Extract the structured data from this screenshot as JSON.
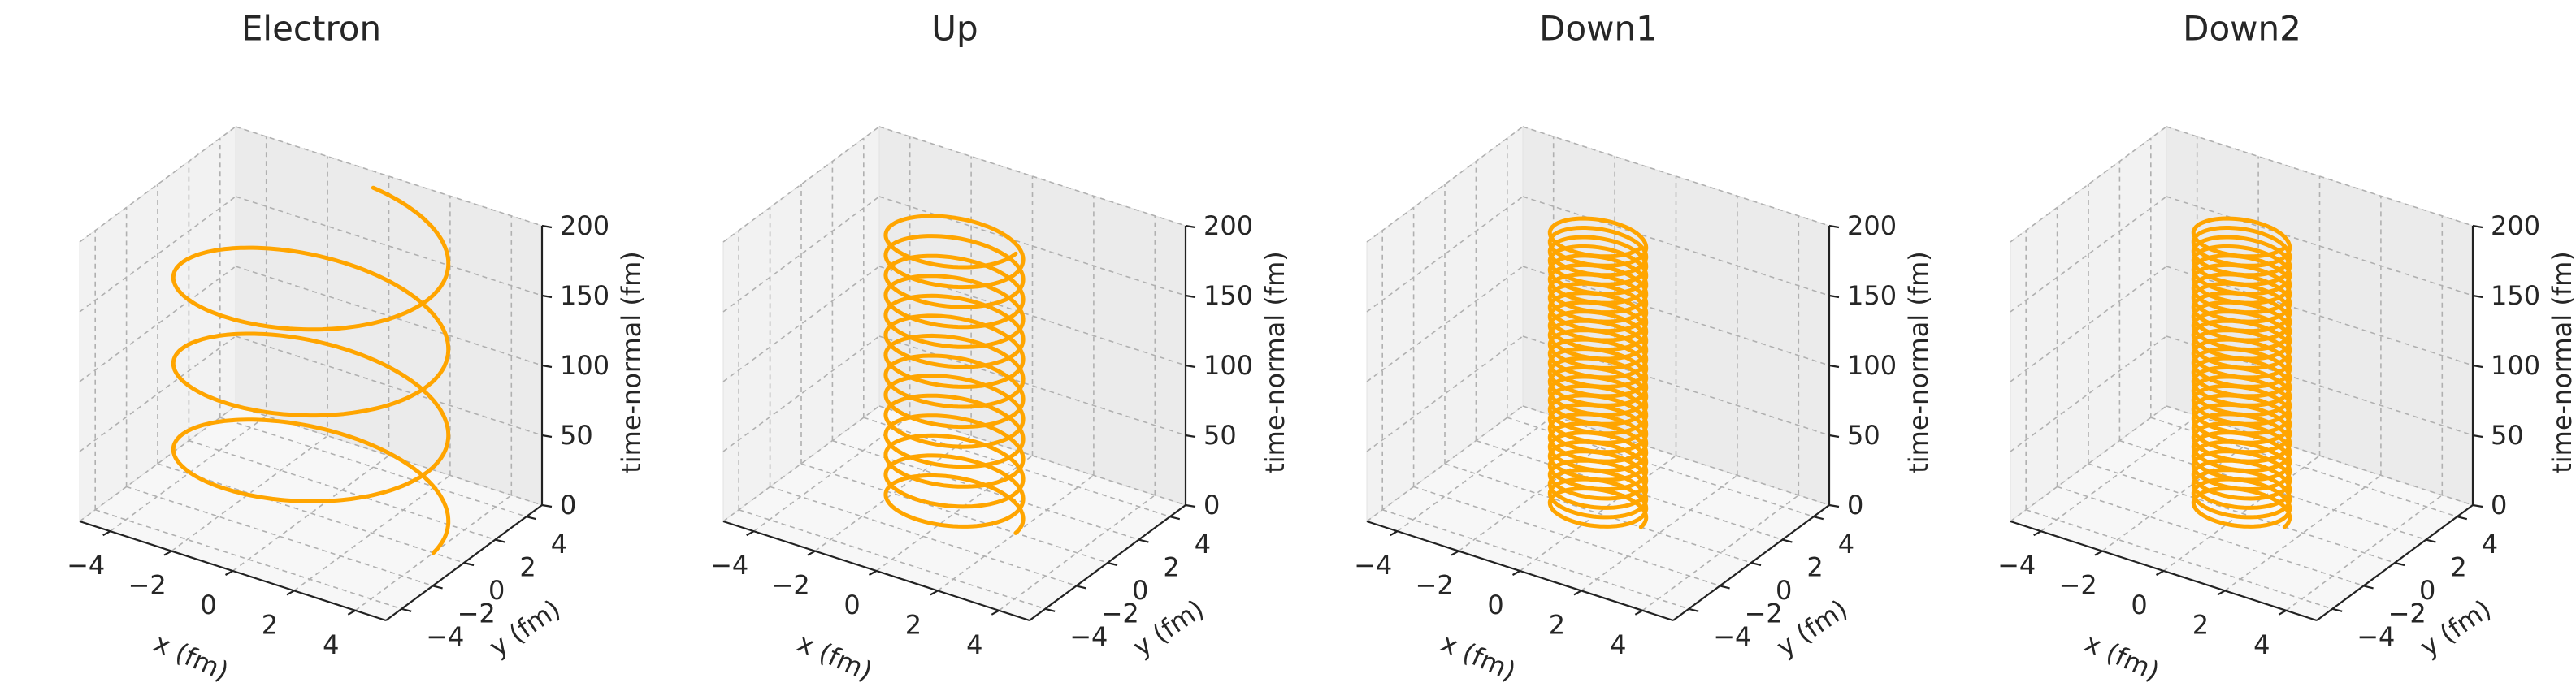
{
  "chart_data": [
    {
      "type": "line3d",
      "title": "Electron",
      "xlabel": "x (fm)",
      "ylabel": "y (fm)",
      "zlabel": "time-normal (fm)",
      "xlim": [
        -5,
        5
      ],
      "ylim": [
        -5,
        5
      ],
      "zlim": [
        0,
        200
      ],
      "xticks": [
        -4,
        -2,
        0,
        2,
        4
      ],
      "yticks": [
        -4,
        -2,
        0,
        2,
        4
      ],
      "zticks": [
        0,
        50,
        100,
        150,
        200
      ],
      "grid": true,
      "series": [
        {
          "radius": 4.0,
          "turns": 3.25,
          "z_range": [
            0,
            200
          ],
          "color": "#FFA500"
        }
      ]
    },
    {
      "type": "line3d",
      "title": "Up",
      "xlabel": "x (fm)",
      "ylabel": "y (fm)",
      "zlabel": "time-normal (fm)",
      "xlim": [
        -5,
        5
      ],
      "ylim": [
        -5,
        5
      ],
      "zlim": [
        0,
        200
      ],
      "xticks": [
        -4,
        -2,
        0,
        2,
        4
      ],
      "yticks": [
        -4,
        -2,
        0,
        2,
        4
      ],
      "zticks": [
        0,
        50,
        100,
        150,
        200
      ],
      "grid": true,
      "series": [
        {
          "radius": 2.0,
          "turns": 14,
          "z_range": [
            0,
            200
          ],
          "color": "#FFA500"
        }
      ]
    },
    {
      "type": "line3d",
      "title": "Down1",
      "xlabel": "x (fm)",
      "ylabel": "y (fm)",
      "zlabel": "time-normal (fm)",
      "xlim": [
        -5,
        5
      ],
      "ylim": [
        -5,
        5
      ],
      "zlim": [
        0,
        200
      ],
      "xticks": [
        -4,
        -2,
        0,
        2,
        4
      ],
      "yticks": [
        -4,
        -2,
        0,
        2,
        4
      ],
      "zticks": [
        0,
        50,
        100,
        150,
        200
      ],
      "grid": true,
      "series": [
        {
          "radius": 1.4,
          "turns": 30,
          "z_range": [
            0,
            200
          ],
          "color": "#FFA500"
        }
      ]
    },
    {
      "type": "line3d",
      "title": "Down2",
      "xlabel": "x (fm)",
      "ylabel": "y (fm)",
      "zlabel": "time-normal (fm)",
      "xlim": [
        -5,
        5
      ],
      "ylim": [
        -5,
        5
      ],
      "zlim": [
        0,
        200
      ],
      "xticks": [
        -4,
        -2,
        0,
        2,
        4
      ],
      "yticks": [
        -4,
        -2,
        0,
        2,
        4
      ],
      "zticks": [
        0,
        50,
        100,
        150,
        200
      ],
      "grid": true,
      "series": [
        {
          "radius": 1.4,
          "turns": 30,
          "z_range": [
            0,
            200
          ],
          "color": "#FFA500"
        }
      ]
    }
  ]
}
